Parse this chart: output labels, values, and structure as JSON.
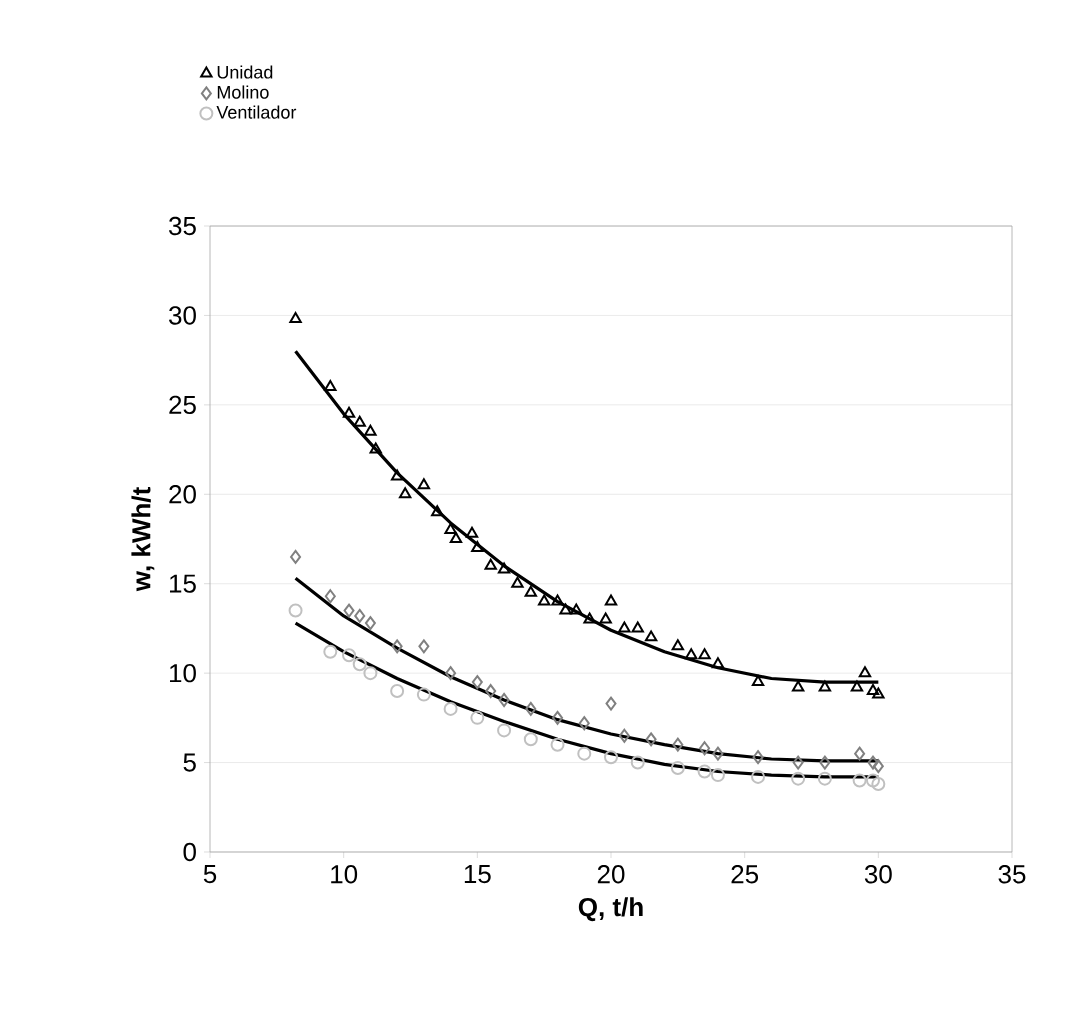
{
  "chart_data": {
    "type": "scatter",
    "xlabel": "Q, t/h",
    "ylabel": "w, kWh/t",
    "xlim": [
      5,
      35
    ],
    "ylim": [
      0,
      35
    ],
    "xticks": [
      5,
      10,
      15,
      20,
      25,
      30,
      35
    ],
    "yticks": [
      0,
      5,
      10,
      15,
      20,
      25,
      30,
      35
    ],
    "grid": "y",
    "legend": "top left",
    "line_style": "solid",
    "series": [
      {
        "name": "Unidad",
        "color": "#000000",
        "marker": "triangle",
        "x": [
          8.2,
          9.5,
          10.2,
          10.6,
          11,
          11.2,
          12,
          12.3,
          13,
          13.5,
          14,
          14.2,
          14.8,
          15,
          15.5,
          16,
          16.5,
          17,
          17.5,
          18,
          18.3,
          18.7,
          19.2,
          19.8,
          20,
          20.5,
          21,
          21.5,
          22.5,
          23,
          23.5,
          24,
          25.5,
          27,
          28,
          29.2,
          29.5,
          29.8,
          30
        ],
        "values": [
          29.8,
          26,
          24.5,
          24,
          23.5,
          22.5,
          21,
          20,
          20.5,
          19,
          18,
          17.5,
          17.8,
          17,
          16,
          15.8,
          15,
          14.5,
          14,
          14,
          13.5,
          13.5,
          13,
          13,
          14,
          12.5,
          12.5,
          12,
          11.5,
          11,
          11,
          10.5,
          9.5,
          9.2,
          9.2,
          9.2,
          10,
          9,
          8.8
        ]
      },
      {
        "name": "Molino",
        "color": "#808080",
        "marker": "diamond",
        "x": [
          8.2,
          9.5,
          10.2,
          10.6,
          11,
          12,
          13,
          14,
          15,
          15.5,
          16,
          17,
          18,
          19,
          20,
          20.5,
          21.5,
          22.5,
          23.5,
          24,
          25.5,
          27,
          28,
          29.3,
          29.8,
          30
        ],
        "values": [
          16.5,
          14.3,
          13.5,
          13.2,
          12.8,
          11.5,
          11.5,
          10,
          9.5,
          9,
          8.5,
          8,
          7.5,
          7.2,
          8.3,
          6.5,
          6.3,
          6,
          5.8,
          5.5,
          5.3,
          5,
          5,
          5.5,
          5,
          4.8
        ]
      },
      {
        "name": "Ventilador",
        "color": "#c0c0c0",
        "marker": "circle",
        "x": [
          8.2,
          9.5,
          10.2,
          10.6,
          11,
          12,
          13,
          14,
          15,
          16,
          17,
          18,
          19,
          20,
          21,
          22.5,
          23.5,
          24,
          25.5,
          27,
          28,
          29.3,
          29.8,
          30
        ],
        "values": [
          13.5,
          11.2,
          11,
          10.5,
          10,
          9,
          8.8,
          8,
          7.5,
          6.8,
          6.3,
          6,
          5.5,
          5.3,
          5,
          4.7,
          4.5,
          4.3,
          4.2,
          4.1,
          4.1,
          4,
          4,
          3.8
        ]
      },
      {
        "type": "line",
        "color": "#000000",
        "marker": "none",
        "x": [
          8.2,
          10,
          12,
          14,
          16,
          18,
          20,
          22,
          24,
          26,
          28,
          30
        ],
        "values": [
          28,
          24.5,
          21.2,
          18.4,
          16,
          14,
          12.4,
          11.2,
          10.3,
          9.7,
          9.5,
          9.5
        ]
      },
      {
        "type": "line",
        "color": "#000000",
        "marker": "none",
        "x": [
          8.2,
          10,
          12,
          14,
          16,
          18,
          20,
          22,
          24,
          26,
          28,
          30
        ],
        "values": [
          15.3,
          13.2,
          11.4,
          9.8,
          8.5,
          7.4,
          6.6,
          6,
          5.5,
          5.2,
          5.1,
          5.1
        ]
      },
      {
        "type": "line",
        "color": "#000000",
        "marker": "none",
        "x": [
          8.2,
          10,
          12,
          14,
          16,
          18,
          20,
          22,
          24,
          26,
          28,
          30
        ],
        "values": [
          12.8,
          11.2,
          9.7,
          8.4,
          7.3,
          6.3,
          5.5,
          4.9,
          4.5,
          4.3,
          4.2,
          4.2
        ]
      }
    ]
  }
}
